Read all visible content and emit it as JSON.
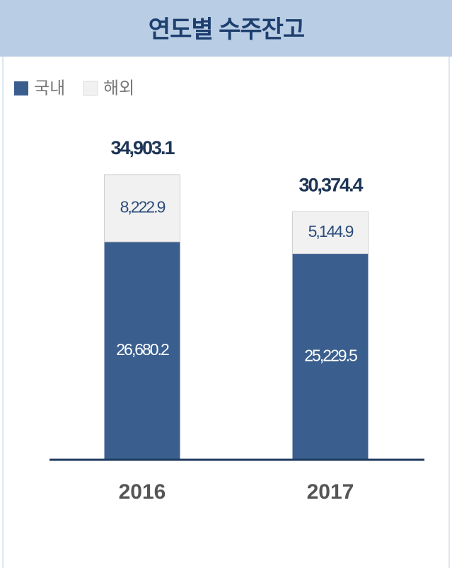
{
  "chart_data": {
    "type": "stacked_bar",
    "title": "연도별 수주잔고",
    "categories": [
      "2016",
      "2017"
    ],
    "series": [
      {
        "name": "국내",
        "color": "#3a5f8f",
        "values": [
          26680.2,
          25229.5
        ],
        "value_labels": [
          "26,680.2",
          "25,229.5"
        ]
      },
      {
        "name": "해외",
        "color": "#f1f1f1",
        "values": [
          8222.9,
          5144.9
        ],
        "value_labels": [
          "8,222.9",
          "5,144.9"
        ]
      }
    ],
    "totals": [
      34903.1,
      30374.4
    ],
    "total_labels": [
      "34,903.1",
      "30,374.4"
    ],
    "ylim": [
      0,
      40000
    ]
  }
}
